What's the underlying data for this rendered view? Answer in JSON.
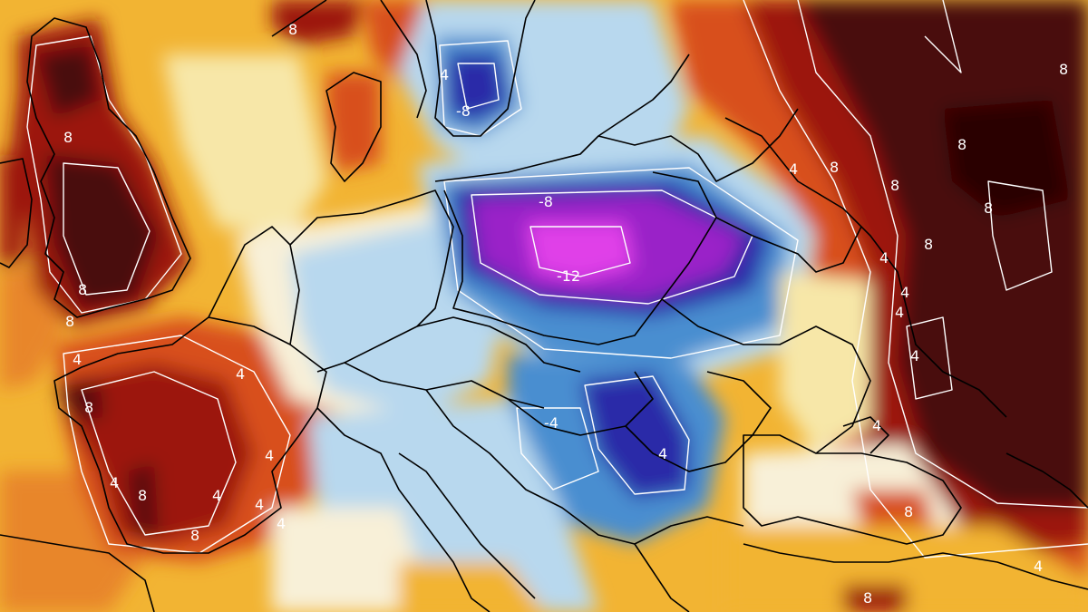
{
  "map": {
    "contour_labels": {
      "uk_north": "8",
      "uk_south_a": "8",
      "uk_south_b": "8",
      "norway_north": "8",
      "sweden_cold_a": "4",
      "sweden_cold_b": "-8",
      "poland_a": "-8",
      "poland_b": "-12",
      "france_a": "4",
      "france_b": "4",
      "france_c": "8",
      "france_d": "4",
      "france_e": "8",
      "france_f": "4",
      "france_g": "4",
      "france_h": "8",
      "france_i": "4",
      "alps_a": "4",
      "balkans_a": "-4",
      "balkans_b": "4",
      "russia_a": "8",
      "russia_b": "8",
      "russia_c": "4",
      "russia_d": "8",
      "russia_e": "8",
      "russia_f": "8",
      "russia_g": "4",
      "russia_h": "4",
      "russia_i": "4",
      "russia_j": "4",
      "russia_k": "8",
      "blacksea_a": "4",
      "blacksea_b": "8",
      "turkey_a": "8",
      "turkey_b": "4"
    },
    "palette": {
      "very_hot": "#4a0a0a",
      "hot": "#9c1810",
      "warm": "#d8501a",
      "mild": "#f2b433",
      "neutral": "#f8f0d8",
      "cool": "#b8d8ee",
      "cold": "#4a8ed0",
      "very_cold": "#2a2aa8",
      "extreme_cold": "#9a20c8",
      "peak_cold": "#e040e8",
      "border": "#000000",
      "isoline": "#ffffff"
    }
  }
}
